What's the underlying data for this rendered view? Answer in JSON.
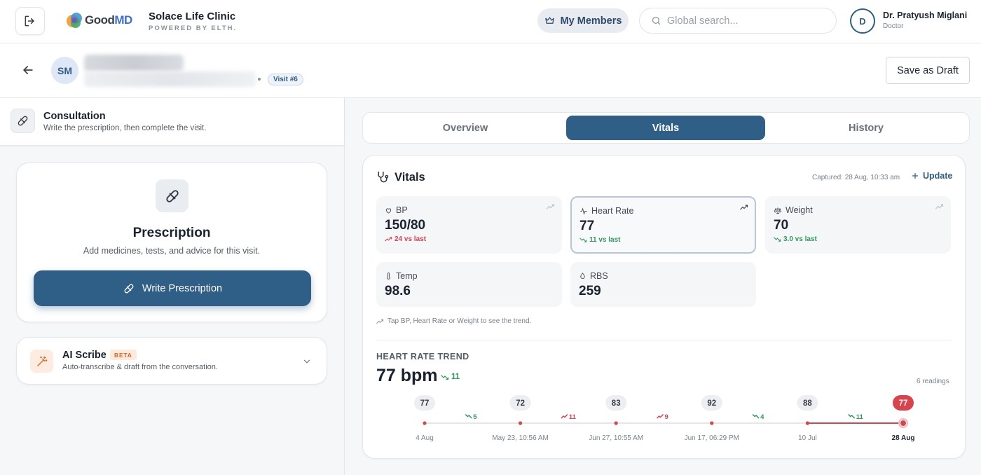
{
  "header": {
    "logo_good": "Good",
    "logo_md": "MD",
    "clinic_name": "Solace Life Clinic",
    "clinic_sub": "POWERED BY ELTH.",
    "members_label": "My Members",
    "search_placeholder": "Global search...",
    "doctor_initial": "D",
    "doctor_name": "Dr. Pratyush Miglani",
    "doctor_role": "Doctor"
  },
  "patient": {
    "initials": "SM",
    "visit_badge": "Visit #6",
    "save_draft_label": "Save as Draft"
  },
  "consultation": {
    "title": "Consultation",
    "subtitle": "Write the prescription, then complete the visit."
  },
  "prescription": {
    "title": "Prescription",
    "subtitle": "Add medicines, tests, and advice for this visit.",
    "button_label": "Write Prescription"
  },
  "ai_scribe": {
    "title": "AI Scribe",
    "badge": "BETA",
    "subtitle": "Auto-transcribe & draft from the conversation."
  },
  "tabs": [
    "Overview",
    "Vitals",
    "History"
  ],
  "active_tab": "Vitals",
  "vitals": {
    "title": "Vitals",
    "captured": "Captured: 28 Aug, 10:33 am",
    "update_label": "Update",
    "tiles": [
      {
        "label": "BP",
        "value": "150/80",
        "delta": "24 vs last",
        "direction": "up"
      },
      {
        "label": "Heart Rate",
        "value": "77",
        "delta": "11 vs last",
        "direction": "down"
      },
      {
        "label": "Weight",
        "value": "70",
        "delta": "3.0 vs last",
        "direction": "down"
      },
      {
        "label": "Temp",
        "value": "98.6"
      },
      {
        "label": "RBS",
        "value": "259"
      }
    ],
    "hint": "Tap BP, Heart Rate or Weight to see the trend."
  },
  "heart_rate_trend": {
    "title": "HEART RATE TREND",
    "current": "77 bpm",
    "delta": "11",
    "readings_label": "6 readings"
  },
  "chart_data": {
    "type": "line",
    "title": "HEART RATE TREND",
    "x": [
      "4 Aug",
      "May 23, 10:56 AM",
      "Jun 27, 10:55 AM",
      "Jun 17, 06:29 PM",
      "10 Jul",
      "28 Aug"
    ],
    "values": [
      77,
      72,
      83,
      92,
      88,
      77
    ],
    "changes": [
      {
        "label": "5",
        "direction": "down"
      },
      {
        "label": "11",
        "direction": "up"
      },
      {
        "label": "9",
        "direction": "up"
      },
      {
        "label": "4",
        "direction": "down"
      },
      {
        "label": "11",
        "direction": "down"
      }
    ],
    "highlight_index": 5,
    "colors": {
      "point": "#d9434e",
      "latest_line": "#d9434e",
      "baseline": "#dcdfe4"
    }
  }
}
